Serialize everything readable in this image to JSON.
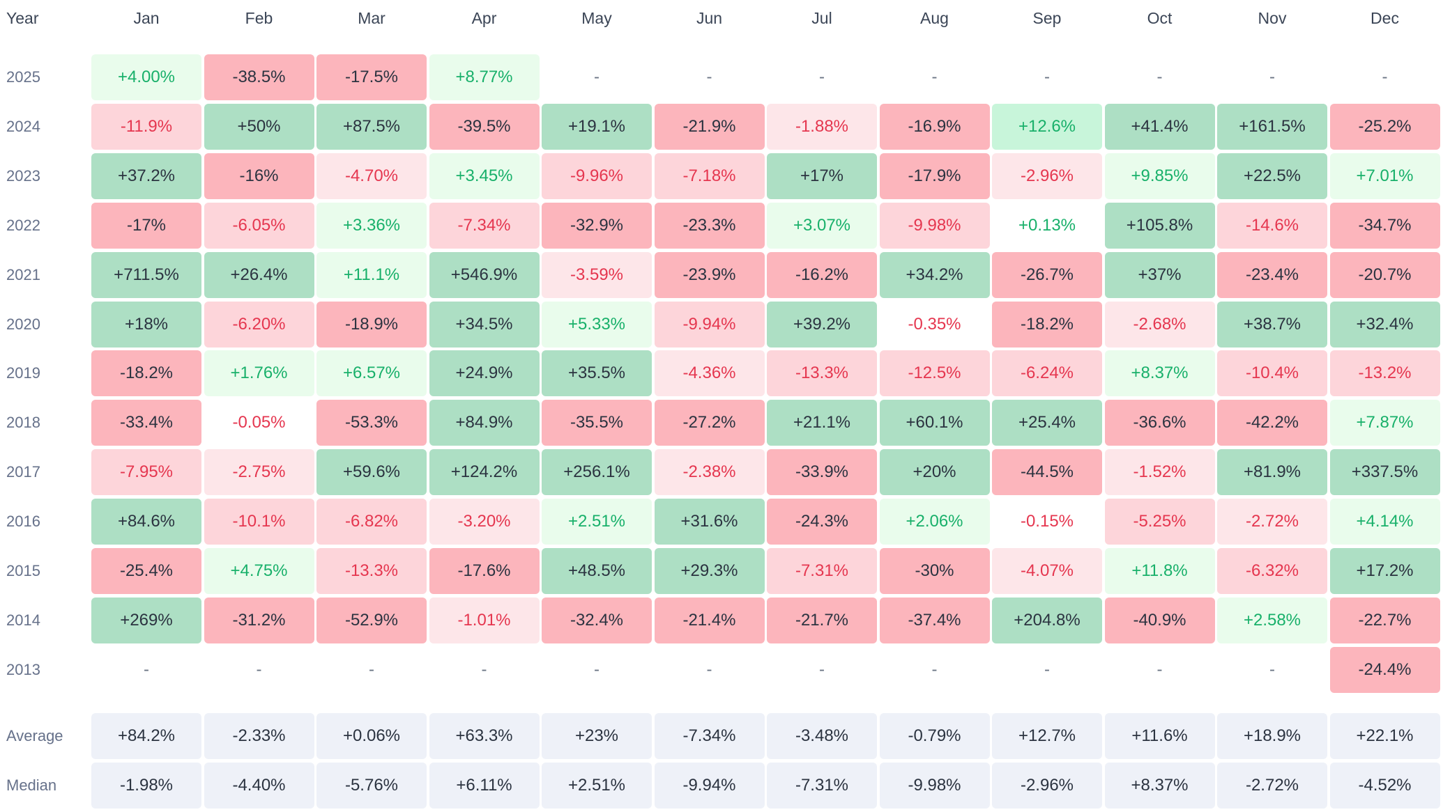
{
  "headers": {
    "year": "Year",
    "months": [
      "Jan",
      "Feb",
      "Mar",
      "Apr",
      "May",
      "Jun",
      "Jul",
      "Aug",
      "Sep",
      "Oct",
      "Nov",
      "Dec"
    ]
  },
  "colors": {
    "pos_light": "#e9fcec",
    "pos_mid": "#c8f5da",
    "pos_dark": "#addfc4",
    "neg_light": "#fde6e9",
    "neg_mid": "#fdd5da",
    "neg_dark": "#fcb5bc",
    "stat_bg": "#eef1f8",
    "pos_text": "#18b06a",
    "neg_text": "#e5364f"
  },
  "chart_data": {
    "type": "heatmap",
    "columns": [
      "Jan",
      "Feb",
      "Mar",
      "Apr",
      "May",
      "Jun",
      "Jul",
      "Aug",
      "Sep",
      "Oct",
      "Nov",
      "Dec"
    ],
    "rows": [
      {
        "label": "2025",
        "values": [
          "+4.00%",
          "-38.5%",
          "-17.5%",
          "+8.77%",
          "-",
          "-",
          "-",
          "-",
          "-",
          "-",
          "-",
          "-"
        ]
      },
      {
        "label": "2024",
        "values": [
          "-11.9%",
          "+50%",
          "+87.5%",
          "-39.5%",
          "+19.1%",
          "-21.9%",
          "-1.88%",
          "-16.9%",
          "+12.6%",
          "+41.4%",
          "+161.5%",
          "-25.2%"
        ]
      },
      {
        "label": "2023",
        "values": [
          "+37.2%",
          "-16%",
          "-4.70%",
          "+3.45%",
          "-9.96%",
          "-7.18%",
          "+17%",
          "-17.9%",
          "-2.96%",
          "+9.85%",
          "+22.5%",
          "+7.01%"
        ]
      },
      {
        "label": "2022",
        "values": [
          "-17%",
          "-6.05%",
          "+3.36%",
          "-7.34%",
          "-32.9%",
          "-23.3%",
          "+3.07%",
          "-9.98%",
          "+0.13%",
          "+105.8%",
          "-14.6%",
          "-34.7%"
        ]
      },
      {
        "label": "2021",
        "values": [
          "+711.5%",
          "+26.4%",
          "+11.1%",
          "+546.9%",
          "-3.59%",
          "-23.9%",
          "-16.2%",
          "+34.2%",
          "-26.7%",
          "+37%",
          "-23.4%",
          "-20.7%"
        ]
      },
      {
        "label": "2020",
        "values": [
          "+18%",
          "-6.20%",
          "-18.9%",
          "+34.5%",
          "+5.33%",
          "-9.94%",
          "+39.2%",
          "-0.35%",
          "-18.2%",
          "-2.68%",
          "+38.7%",
          "+32.4%"
        ]
      },
      {
        "label": "2019",
        "values": [
          "-18.2%",
          "+1.76%",
          "+6.57%",
          "+24.9%",
          "+35.5%",
          "-4.36%",
          "-13.3%",
          "-12.5%",
          "-6.24%",
          "+8.37%",
          "-10.4%",
          "-13.2%"
        ]
      },
      {
        "label": "2018",
        "values": [
          "-33.4%",
          "-0.05%",
          "-53.3%",
          "+84.9%",
          "-35.5%",
          "-27.2%",
          "+21.1%",
          "+60.1%",
          "+25.4%",
          "-36.6%",
          "-42.2%",
          "+7.87%"
        ]
      },
      {
        "label": "2017",
        "values": [
          "-7.95%",
          "-2.75%",
          "+59.6%",
          "+124.2%",
          "+256.1%",
          "-2.38%",
          "-33.9%",
          "+20%",
          "-44.5%",
          "-1.52%",
          "+81.9%",
          "+337.5%"
        ]
      },
      {
        "label": "2016",
        "values": [
          "+84.6%",
          "-10.1%",
          "-6.82%",
          "-3.20%",
          "+2.51%",
          "+31.6%",
          "-24.3%",
          "+2.06%",
          "-0.15%",
          "-5.25%",
          "-2.72%",
          "+4.14%"
        ]
      },
      {
        "label": "2015",
        "values": [
          "-25.4%",
          "+4.75%",
          "-13.3%",
          "-17.6%",
          "+48.5%",
          "+29.3%",
          "-7.31%",
          "-30%",
          "-4.07%",
          "+11.8%",
          "-6.32%",
          "+17.2%"
        ]
      },
      {
        "label": "2014",
        "values": [
          "+269%",
          "-31.2%",
          "-52.9%",
          "-1.01%",
          "-32.4%",
          "-21.4%",
          "-21.7%",
          "-37.4%",
          "+204.8%",
          "-40.9%",
          "+2.58%",
          "-22.7%"
        ]
      },
      {
        "label": "2013",
        "values": [
          "-",
          "-",
          "-",
          "-",
          "-",
          "-",
          "-",
          "-",
          "-",
          "-",
          "-",
          "-24.4%"
        ]
      }
    ],
    "summary": [
      {
        "label": "Average",
        "values": [
          "+84.2%",
          "-2.33%",
          "+0.06%",
          "+63.3%",
          "+23%",
          "-7.34%",
          "-3.48%",
          "-0.79%",
          "+12.7%",
          "+11.6%",
          "+18.9%",
          "+22.1%"
        ]
      },
      {
        "label": "Median",
        "values": [
          "-1.98%",
          "-4.40%",
          "-5.76%",
          "+6.11%",
          "+2.51%",
          "-9.94%",
          "-7.31%",
          "-9.98%",
          "-2.96%",
          "+8.37%",
          "-2.72%",
          "-4.52%"
        ]
      }
    ]
  }
}
